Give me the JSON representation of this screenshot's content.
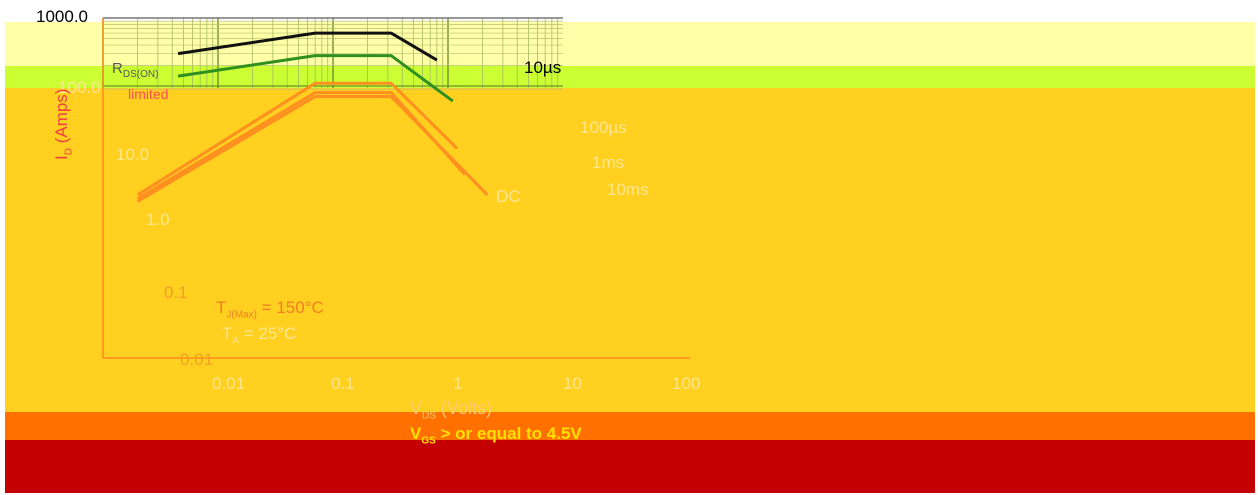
{
  "chart_data": {
    "type": "line",
    "xscale": "log",
    "yscale": "log",
    "xlim": [
      0.01,
      100
    ],
    "ylim": [
      0.01,
      1000
    ],
    "x_ticks": [
      "0.01",
      "0.1",
      "1",
      "10",
      "100"
    ],
    "y_ticks": [
      "0.01",
      "0.1",
      "1.0",
      "10.0",
      "100.0",
      "1000.0"
    ],
    "xlabel": {
      "main": "V",
      "sub": "DS",
      "rest": " (Volts)"
    },
    "ylabel": {
      "main": "I",
      "sub": "D",
      "rest": " (Amps)"
    },
    "subtitle": {
      "main": "V",
      "sub": "GS",
      "rest": " > or equal to 4.5V"
    },
    "grid": true,
    "annotations": {
      "rds_limited": {
        "main": "R",
        "sub": "DS(ON)",
        "rest": "limited"
      },
      "tjmax": {
        "main": "T",
        "sub": "J(Max)",
        "rest": " = 150°C"
      },
      "ta": {
        "main": "T",
        "sub": "A",
        "rest": " = 25°C"
      }
    },
    "series": [
      {
        "name": "10µs",
        "x": [
          0.045,
          0.7,
          3.2,
          8
        ],
        "y": [
          300,
          600,
          600,
          240
        ]
      },
      {
        "name": "100µs",
        "x": [
          0.045,
          0.7,
          3.2,
          11
        ],
        "y": [
          140,
          280,
          280,
          60
        ]
      },
      {
        "name": "1ms",
        "x": [
          0.02,
          0.7,
          3.2,
          12
        ],
        "y": [
          2.5,
          110,
          110,
          12
        ]
      },
      {
        "name": "10ms",
        "x": [
          0.02,
          0.7,
          3.2,
          14
        ],
        "y": [
          2.2,
          80,
          80,
          5
        ]
      },
      {
        "name": "DC",
        "x": [
          0.02,
          0.7,
          3.2,
          22
        ],
        "y": [
          2,
          70,
          70,
          2.5
        ]
      }
    ],
    "colors": {
      "green_line": "#2f8f1f",
      "black_line": "#111111",
      "orange_line": "#ff9020",
      "red_line": "#ff2000"
    }
  },
  "theme": {
    "bands": [
      "#ffffa8",
      "#ccff33",
      "#ffd020",
      "#ff7000",
      "#c40000"
    ]
  }
}
